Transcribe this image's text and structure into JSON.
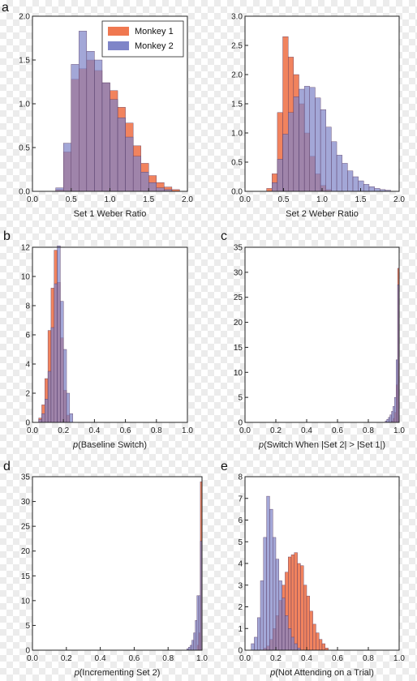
{
  "legend": {
    "entries": [
      {
        "name": "Monkey 1",
        "color": "#f07850"
      },
      {
        "name": "Monkey 2",
        "color": "#7f85c8"
      }
    ],
    "placement": "top-right of panel a1"
  },
  "colors": {
    "monkey1": "#f07850",
    "monkey2": "#7f85c8",
    "overlap": "#8a4a78"
  },
  "chart_data": [
    {
      "type": "bar",
      "panel_letter": "a",
      "xlabel": "Set 1 Weber Ratio",
      "xlim": [
        0,
        2
      ],
      "ylim": [
        0,
        2
      ],
      "xticks": [
        "0.0",
        "0.5",
        "1.0",
        "1.5",
        "2.0"
      ],
      "yticks": [
        "0.0",
        "0.5",
        "1.0",
        "1.5",
        "2.0"
      ],
      "bin_width": 0.1,
      "show_legend": true,
      "series": [
        {
          "name": "Monkey 1",
          "x": [
            0.3,
            0.4,
            0.5,
            0.6,
            0.7,
            0.8,
            0.9,
            1.0,
            1.1,
            1.2,
            1.3,
            1.4,
            1.5,
            1.6,
            1.7,
            1.8
          ],
          "values": [
            0.02,
            0.45,
            1.28,
            1.4,
            1.5,
            1.38,
            1.24,
            1.15,
            0.96,
            0.78,
            0.52,
            0.32,
            0.18,
            0.1,
            0.05,
            0.02
          ]
        },
        {
          "name": "Monkey 2",
          "x": [
            0.3,
            0.4,
            0.5,
            0.6,
            0.7,
            0.8,
            0.9,
            1.0,
            1.1,
            1.2,
            1.3,
            1.4,
            1.5,
            1.6,
            1.7
          ],
          "values": [
            0.04,
            0.55,
            1.45,
            1.83,
            1.6,
            1.5,
            1.24,
            1.05,
            0.84,
            0.62,
            0.4,
            0.22,
            0.1,
            0.04,
            0.02
          ]
        }
      ]
    },
    {
      "type": "bar",
      "panel_letter": "",
      "xlabel": "Set 2 Weber Ratio",
      "xlim": [
        0,
        2
      ],
      "ylim": [
        0,
        3
      ],
      "xticks": [
        "0.0",
        "0.5",
        "1.0",
        "1.5",
        "2.0"
      ],
      "yticks": [
        "0.0",
        "0.5",
        "1.0",
        "1.5",
        "2.0",
        "2.5",
        "3.0"
      ],
      "bin_width": 0.07,
      "show_legend": false,
      "series": [
        {
          "name": "Monkey 1",
          "x": [
            0.28,
            0.35,
            0.42,
            0.49,
            0.56,
            0.63,
            0.7,
            0.77,
            0.84,
            0.91,
            0.98,
            1.05
          ],
          "values": [
            0.05,
            0.3,
            1.35,
            2.65,
            2.3,
            2.0,
            1.5,
            1.0,
            0.6,
            0.3,
            0.1,
            0.03
          ]
        },
        {
          "name": "Monkey 2",
          "x": [
            0.35,
            0.42,
            0.49,
            0.56,
            0.63,
            0.7,
            0.77,
            0.84,
            0.91,
            0.98,
            1.05,
            1.12,
            1.19,
            1.26,
            1.33,
            1.4,
            1.47,
            1.54,
            1.61,
            1.68,
            1.75,
            1.82
          ],
          "values": [
            0.15,
            0.55,
            0.98,
            1.35,
            1.62,
            1.75,
            1.8,
            1.78,
            1.6,
            1.4,
            1.1,
            0.85,
            0.62,
            0.48,
            0.35,
            0.25,
            0.18,
            0.12,
            0.08,
            0.05,
            0.03,
            0.02
          ]
        }
      ]
    },
    {
      "type": "bar",
      "panel_letter": "b",
      "xlabel_italic": "p",
      "xlabel": "(Baseline Switch)",
      "xlim": [
        0,
        1
      ],
      "ylim": [
        0,
        12
      ],
      "xticks": [
        "0.0",
        "0.2",
        "0.4",
        "0.6",
        "0.8",
        "1.0"
      ],
      "yticks": [
        "0",
        "2",
        "4",
        "6",
        "8",
        "10",
        "12"
      ],
      "bin_width": 0.02,
      "show_legend": false,
      "series": [
        {
          "name": "Monkey 1",
          "x": [
            0.04,
            0.06,
            0.08,
            0.1,
            0.12,
            0.14,
            0.16,
            0.18,
            0.2,
            0.22
          ],
          "values": [
            0.3,
            1.2,
            3.0,
            6.3,
            9.2,
            11.8,
            9.6,
            5.8,
            2.2,
            0.5
          ]
        },
        {
          "name": "Monkey 2",
          "x": [
            0.04,
            0.06,
            0.08,
            0.1,
            0.12,
            0.14,
            0.16,
            0.18,
            0.2,
            0.22,
            0.24
          ],
          "values": [
            0.2,
            0.6,
            1.6,
            3.5,
            6.5,
            9.5,
            12.1,
            8.3,
            5.0,
            2.0,
            0.6
          ]
        }
      ]
    },
    {
      "type": "bar",
      "panel_letter": "c",
      "xlabel_italic": "p",
      "xlabel": "(Switch When |Set 2| > |Set 1|)",
      "xlim": [
        0,
        1
      ],
      "ylim": [
        0,
        35
      ],
      "xticks": [
        "0.0",
        "0.2",
        "0.4",
        "0.6",
        "0.8",
        "1.0"
      ],
      "yticks": [
        "0",
        "5",
        "10",
        "15",
        "20",
        "25",
        "30",
        "35"
      ],
      "bin_width": 0.01,
      "show_legend": false,
      "series": [
        {
          "name": "Monkey 1",
          "x": [
            0.95,
            0.96,
            0.97,
            0.98,
            0.99
          ],
          "values": [
            0.3,
            0.8,
            2.0,
            7.5,
            30.8
          ]
        },
        {
          "name": "Monkey 2",
          "x": [
            0.91,
            0.92,
            0.93,
            0.94,
            0.95,
            0.96,
            0.97,
            0.98,
            0.99
          ],
          "values": [
            0.3,
            0.6,
            1.0,
            1.5,
            2.2,
            3.2,
            5.0,
            12.5,
            27.5
          ]
        }
      ]
    },
    {
      "type": "bar",
      "panel_letter": "d",
      "xlabel_italic": "p",
      "xlabel": "(Incrementing Set 2)",
      "xlim": [
        0,
        1
      ],
      "ylim": [
        0,
        35
      ],
      "xticks": [
        "0.0",
        "0.2",
        "0.4",
        "0.6",
        "0.8",
        "1.0"
      ],
      "yticks": [
        "0",
        "5",
        "10",
        "15",
        "20",
        "25",
        "30",
        "35"
      ],
      "bin_width": 0.01,
      "show_legend": false,
      "series": [
        {
          "name": "Monkey 1",
          "x": [
            0.97,
            0.98,
            0.99
          ],
          "values": [
            1.0,
            3.5,
            34.0
          ]
        },
        {
          "name": "Monkey 2",
          "x": [
            0.91,
            0.92,
            0.93,
            0.94,
            0.95,
            0.96,
            0.97,
            0.98,
            0.99
          ],
          "values": [
            0.3,
            0.6,
            1.0,
            2.0,
            3.5,
            6.0,
            11.0,
            11.0,
            22.0
          ]
        }
      ]
    },
    {
      "type": "bar",
      "panel_letter": "e",
      "xlabel_italic": "p",
      "xlabel": "(Not Attending on a Trial)",
      "xlim": [
        0,
        1
      ],
      "ylim": [
        0,
        8
      ],
      "xticks": [
        "0.0",
        "0.2",
        "0.4",
        "0.6",
        "0.8",
        "1.0"
      ],
      "yticks": [
        "0",
        "1",
        "2",
        "3",
        "4",
        "5",
        "6",
        "7",
        "8"
      ],
      "bin_width": 0.02,
      "show_legend": false,
      "series": [
        {
          "name": "Monkey 1",
          "x": [
            0.12,
            0.14,
            0.16,
            0.18,
            0.2,
            0.22,
            0.24,
            0.26,
            0.28,
            0.3,
            0.32,
            0.34,
            0.36,
            0.38,
            0.4,
            0.42,
            0.44,
            0.46,
            0.48,
            0.5,
            0.52
          ],
          "values": [
            0.1,
            0.2,
            0.5,
            1.0,
            1.6,
            2.3,
            3.0,
            3.6,
            4.3,
            4.4,
            4.5,
            4.0,
            3.9,
            3.0,
            2.5,
            1.8,
            1.2,
            0.8,
            0.5,
            0.3,
            0.1
          ]
        },
        {
          "name": "Monkey 2",
          "x": [
            0.04,
            0.06,
            0.08,
            0.1,
            0.12,
            0.14,
            0.16,
            0.18,
            0.2,
            0.22,
            0.24,
            0.26,
            0.28,
            0.3,
            0.32,
            0.34
          ],
          "values": [
            0.3,
            0.6,
            1.5,
            3.2,
            5.2,
            7.1,
            6.5,
            5.2,
            4.2,
            3.2,
            2.4,
            1.6,
            1.0,
            0.6,
            0.3,
            0.1
          ]
        }
      ]
    }
  ]
}
